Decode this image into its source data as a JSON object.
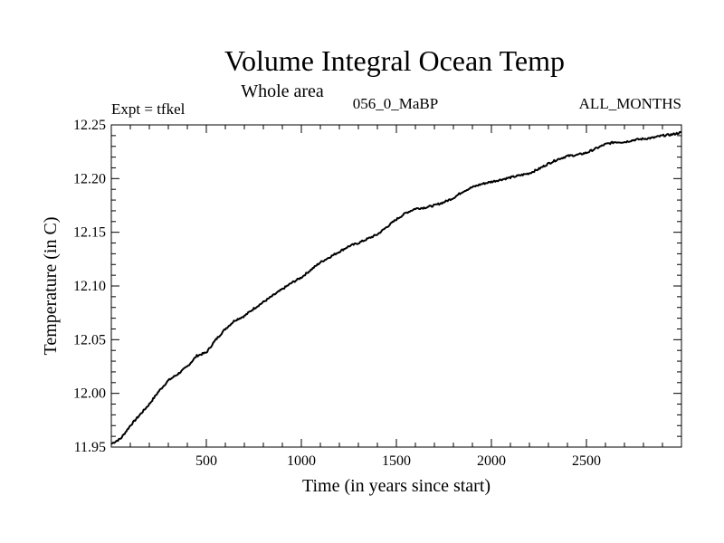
{
  "chart_data": {
    "type": "line",
    "title": "Volume Integral Ocean Temp",
    "subtitle": "Whole area",
    "annotations": {
      "left": "Expt = tfkel",
      "center": "056_0_MaBP",
      "right": "ALL_MONTHS"
    },
    "xlabel": "Time (in years since start)",
    "ylabel": "Temperature (in C)",
    "xlim": [
      0,
      3000
    ],
    "ylim": [
      11.95,
      12.25
    ],
    "xticks": [
      500,
      1000,
      1500,
      2000,
      2500
    ],
    "xtick_labels": [
      "500",
      "1000",
      "1500",
      "2000",
      "2500"
    ],
    "yticks": [
      11.95,
      12.0,
      12.05,
      12.1,
      12.15,
      12.2,
      12.25
    ],
    "ytick_labels": [
      "11.95",
      "12.00",
      "12.05",
      "12.10",
      "12.15",
      "12.20",
      "12.25"
    ],
    "grid": false,
    "line_color": "#000000",
    "series": [
      {
        "x": [
          0,
          50,
          100,
          150,
          200,
          250,
          300,
          350,
          400,
          450,
          500,
          550,
          600,
          650,
          700,
          750,
          800,
          850,
          900,
          950,
          1000,
          1050,
          1100,
          1150,
          1200,
          1250,
          1300,
          1350,
          1400,
          1450,
          1500,
          1550,
          1600,
          1650,
          1700,
          1750,
          1800,
          1850,
          1900,
          1950,
          2000,
          2050,
          2100,
          2150,
          2200,
          2250,
          2300,
          2350,
          2400,
          2450,
          2500,
          2550,
          2600,
          2650,
          2700,
          2750,
          2800,
          2850,
          2900,
          2950,
          3000
        ],
        "y": [
          11.953,
          11.958,
          11.97,
          11.98,
          11.99,
          12.002,
          12.012,
          12.018,
          12.025,
          12.035,
          12.038,
          12.05,
          12.06,
          12.068,
          12.072,
          12.079,
          12.085,
          12.091,
          12.097,
          12.103,
          12.108,
          12.115,
          12.122,
          12.127,
          12.132,
          12.137,
          12.14,
          12.144,
          12.148,
          12.155,
          12.162,
          12.168,
          12.172,
          12.173,
          12.175,
          12.178,
          12.182,
          12.188,
          12.192,
          12.195,
          12.197,
          12.199,
          12.201,
          12.203,
          12.205,
          12.209,
          12.214,
          12.218,
          12.221,
          12.222,
          12.224,
          12.228,
          12.232,
          12.234,
          12.234,
          12.236,
          12.237,
          12.238,
          12.24,
          12.241,
          12.243
        ]
      }
    ]
  }
}
